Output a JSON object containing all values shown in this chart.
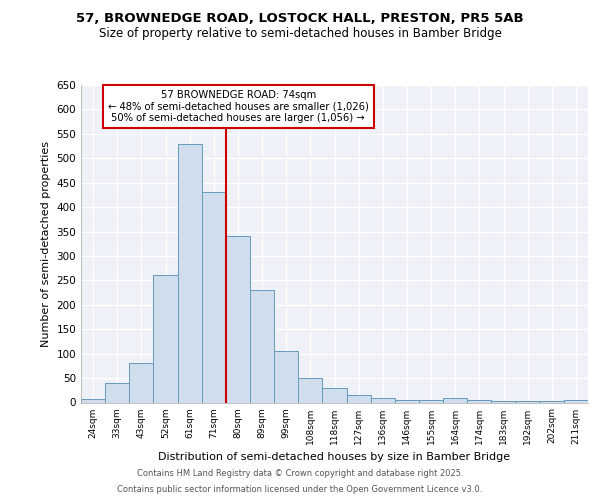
{
  "title1": "57, BROWNEDGE ROAD, LOSTOCK HALL, PRESTON, PR5 5AB",
  "title2": "Size of property relative to semi-detached houses in Bamber Bridge",
  "xlabel": "Distribution of semi-detached houses by size in Bamber Bridge",
  "ylabel": "Number of semi-detached properties",
  "categories": [
    "24sqm",
    "33sqm",
    "43sqm",
    "52sqm",
    "61sqm",
    "71sqm",
    "80sqm",
    "89sqm",
    "99sqm",
    "108sqm",
    "118sqm",
    "127sqm",
    "136sqm",
    "146sqm",
    "155sqm",
    "164sqm",
    "174sqm",
    "183sqm",
    "192sqm",
    "202sqm",
    "211sqm"
  ],
  "values": [
    7,
    40,
    80,
    262,
    530,
    430,
    340,
    230,
    105,
    50,
    30,
    15,
    10,
    6,
    6,
    10,
    6,
    3,
    3,
    3,
    5
  ],
  "bar_color": "#cfdded",
  "bar_edge_color": "#6699bb",
  "vline_color": "#cc0000",
  "annotation_title": "57 BROWNEDGE ROAD: 74sqm",
  "annotation_line1": "← 48% of semi-detached houses are smaller (1,026)",
  "annotation_line2": "50% of semi-detached houses are larger (1,056) →",
  "annotation_box_color": "#cc0000",
  "ylim": [
    0,
    650
  ],
  "yticks": [
    0,
    50,
    100,
    150,
    200,
    250,
    300,
    350,
    400,
    450,
    500,
    550,
    600,
    650
  ],
  "footer1": "Contains HM Land Registry data © Crown copyright and database right 2025.",
  "footer2": "Contains public sector information licensed under the Open Government Licence v3.0.",
  "bg_color": "#ffffff",
  "grid_color": "#d0d8e8"
}
